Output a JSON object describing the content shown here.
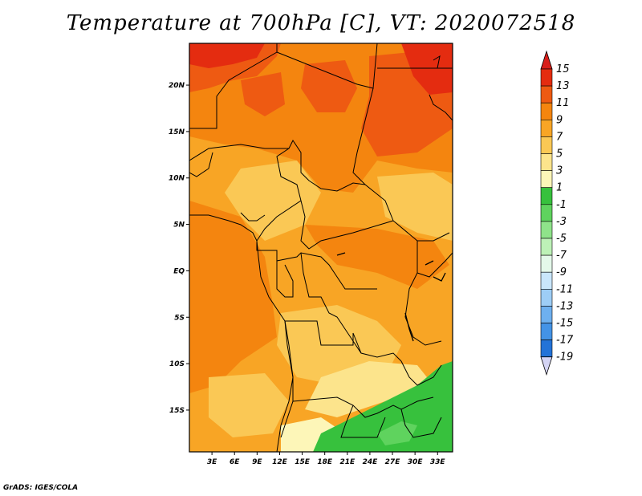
{
  "title": "Temperature at 700hPa [C], VT: 2020072518",
  "credit": "GrADS: IGES/COLA",
  "map": {
    "lat_labels": [
      "20N",
      "15N",
      "10N",
      "5N",
      "EQ",
      "5S",
      "10S",
      "15S"
    ],
    "lat_values": [
      20,
      15,
      10,
      5,
      0,
      -5,
      -10,
      -15
    ],
    "lon_labels": [
      "3E",
      "6E",
      "9E",
      "12E",
      "15E",
      "18E",
      "21E",
      "24E",
      "27E",
      "30E",
      "33E"
    ],
    "lon_values": [
      3,
      6,
      9,
      12,
      15,
      18,
      21,
      24,
      27,
      30,
      33
    ],
    "lat_range": [
      -19.5,
      24.5
    ],
    "lon_range": [
      0,
      35
    ]
  },
  "colorbar": {
    "labels": [
      "15",
      "13",
      "11",
      "9",
      "7",
      "5",
      "3",
      "1",
      "-1",
      "-3",
      "-5",
      "-7",
      "-9",
      "-11",
      "-13",
      "-15",
      "-17",
      "-19"
    ],
    "colors": [
      "#e42c10",
      "#ee5a12",
      "#f4850f",
      "#f8a525",
      "#fac855",
      "#fce48c",
      "#fdf6b8",
      "#37c13d",
      "#5fd35e",
      "#8fe38a",
      "#bdf1b7",
      "#e4f8ea",
      "#c9e6fb",
      "#9dcdf6",
      "#6eb0ef",
      "#4493e6",
      "#2373d8",
      "#1452c2",
      "#0c2c96",
      "#0a0a66"
    ],
    "top_arrow_color": "#d81e1a",
    "bottom_arrow_color": "#d4d4f4"
  }
}
